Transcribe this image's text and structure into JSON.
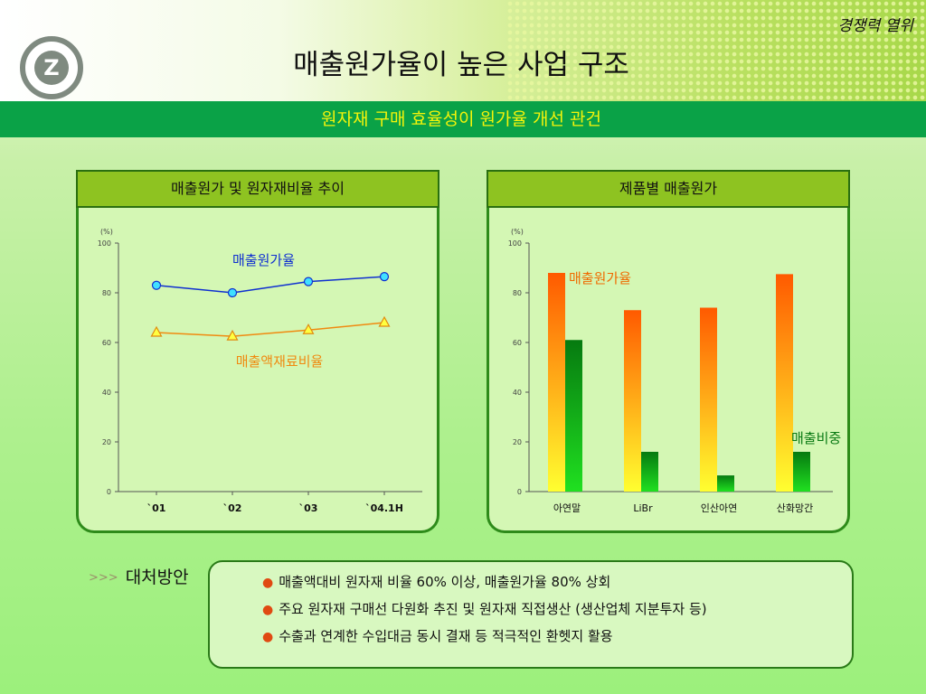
{
  "header": {
    "corner_label": "경쟁력 열위",
    "title": "매출원가율이 높은 사업 구조",
    "subtitle": "원자재 구매 효율성이 원가율 개선 관건",
    "logo_letter": "Z"
  },
  "colors": {
    "green_bar": "#0aa247",
    "subtitle": "#f4f40a",
    "panel_head": "#8ec321",
    "line_blue": "#1030d0",
    "line_orange": "#f08a10",
    "bar_orange": "#ff6a00",
    "bar_green": "#0a8a14"
  },
  "chart_left": {
    "heading": "매출원가 및 원자재비율 추이",
    "unit_label": "(%)",
    "label_cost": "매출원가율",
    "label_material": "매출액재료비율"
  },
  "chart_right": {
    "heading": "제품별 매출원가",
    "unit_label": "(%)",
    "label_cost": "매출원가율",
    "label_share": "매출비중"
  },
  "solution": {
    "heading": "대처방안",
    "arrows": ">>>",
    "items": [
      "매출액대비 원자재 비율 60% 이상, 매출원가율 80% 상회",
      "주요 원자재 구매선 다원화 추진 및 원자재 직접생산 (생산업체 지분투자 등)",
      "수출과 연계한 수입대금 동시 결재 등 적극적인 환헷지 활용"
    ]
  },
  "chart_data": [
    {
      "type": "line",
      "categories": [
        "`01",
        "`02",
        "`03",
        "`04.1H"
      ],
      "series": [
        {
          "name": "매출원가율",
          "values": [
            83,
            80,
            84.5,
            86.5
          ]
        },
        {
          "name": "매출액재료비율",
          "values": [
            64,
            62.5,
            65,
            68
          ]
        }
      ],
      "ylim": [
        0,
        100
      ],
      "yticks": [
        0,
        20,
        40,
        60,
        80,
        100
      ],
      "ylabel": "(%)"
    },
    {
      "type": "bar",
      "categories": [
        "아연말",
        "LiBr",
        "인산아연",
        "산화망간"
      ],
      "series": [
        {
          "name": "매출원가율",
          "values": [
            88,
            73,
            74,
            87.5
          ]
        },
        {
          "name": "매출비중",
          "values": [
            61,
            16,
            6.5,
            16
          ]
        }
      ],
      "ylim": [
        0,
        100
      ],
      "yticks": [
        0,
        20,
        40,
        60,
        80,
        100
      ],
      "ylabel": "(%)"
    }
  ]
}
